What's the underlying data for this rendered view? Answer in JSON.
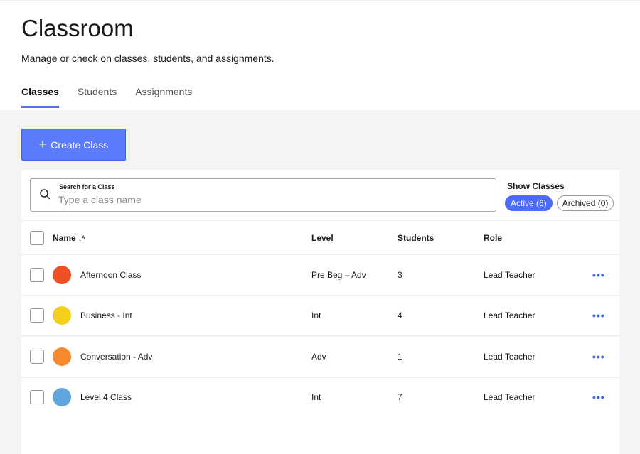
{
  "header": {
    "title": "Classroom",
    "subtitle": "Manage or check on classes, students, and assignments."
  },
  "tabs": [
    {
      "label": "Classes"
    },
    {
      "label": "Students"
    },
    {
      "label": "Assignments"
    }
  ],
  "create_button": "Create Class",
  "search": {
    "label": "Search for a Class",
    "placeholder": "Type a class name"
  },
  "filter": {
    "label": "Show Classes",
    "active": "Active (6)",
    "archived": "Archived (0)"
  },
  "columns": {
    "name": "Name",
    "level": "Level",
    "students": "Students",
    "role": "Role"
  },
  "rows": [
    {
      "name": "Afternoon Class",
      "level": "Pre Beg – Adv",
      "students": "3",
      "role": "Lead Teacher",
      "color": "#f04e23"
    },
    {
      "name": "Business - Int",
      "level": "Int",
      "students": "4",
      "role": "Lead Teacher",
      "color": "#f5d01a"
    },
    {
      "name": "Conversation - Adv",
      "level": "Adv",
      "students": "1",
      "role": "Lead Teacher",
      "color": "#f7892a"
    },
    {
      "name": "Level 4 Class",
      "level": "Int",
      "students": "7",
      "role": "Lead Teacher",
      "color": "#5ea6dd"
    }
  ]
}
